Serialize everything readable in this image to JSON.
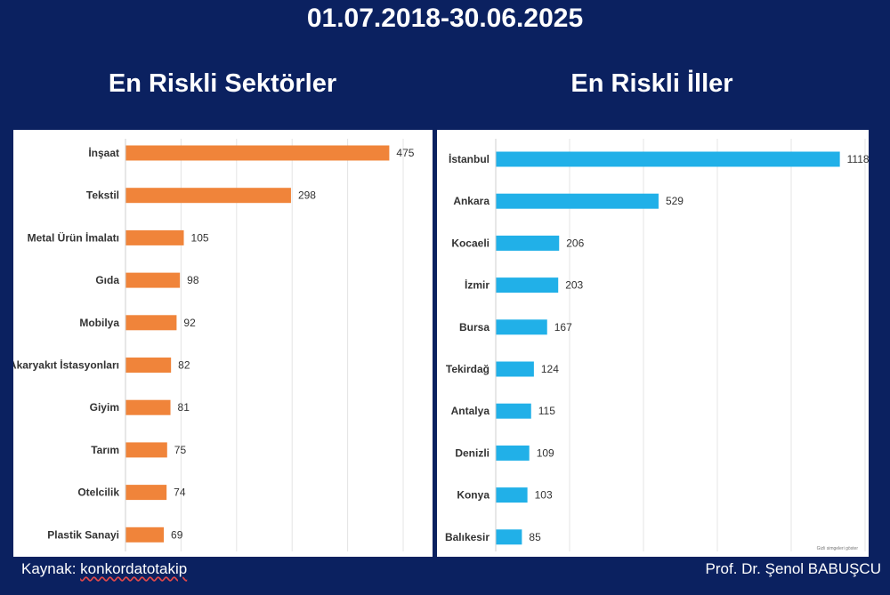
{
  "header": {
    "date_range": "01.07.2018-30.06.2025"
  },
  "footer": {
    "source_label": "Kaynak: ",
    "source_name": "konkordatotakip",
    "author": "Prof. Dr. Şenol BABUŞCU"
  },
  "chart_note": "Gizli simgeleri göster",
  "chart_data": [
    {
      "type": "bar",
      "orientation": "horizontal",
      "title": "En Riskli Sektörler",
      "categories": [
        "İnşaat",
        "Tekstil",
        "Metal Ürün İmalatı",
        "Gıda",
        "Mobilya",
        "Akaryakıt İstasyonları",
        "Giyim",
        "Tarım",
        "Otelcilik",
        "Plastik Sanayi"
      ],
      "values": [
        475,
        298,
        105,
        98,
        92,
        82,
        81,
        75,
        74,
        69
      ],
      "color": "#f0843a",
      "xlim": [
        0,
        500
      ],
      "grid": true
    },
    {
      "type": "bar",
      "orientation": "horizontal",
      "title": "En Riskli İller",
      "categories": [
        "İstanbul",
        "Ankara",
        "Kocaeli",
        "İzmir",
        "Bursa",
        "Tekirdağ",
        "Antalya",
        "Denizli",
        "Konya",
        "Balıkesir"
      ],
      "values": [
        1118,
        529,
        206,
        203,
        167,
        124,
        115,
        109,
        103,
        85
      ],
      "color": "#21b0e8",
      "xlim": [
        0,
        1200
      ],
      "grid": true
    }
  ]
}
